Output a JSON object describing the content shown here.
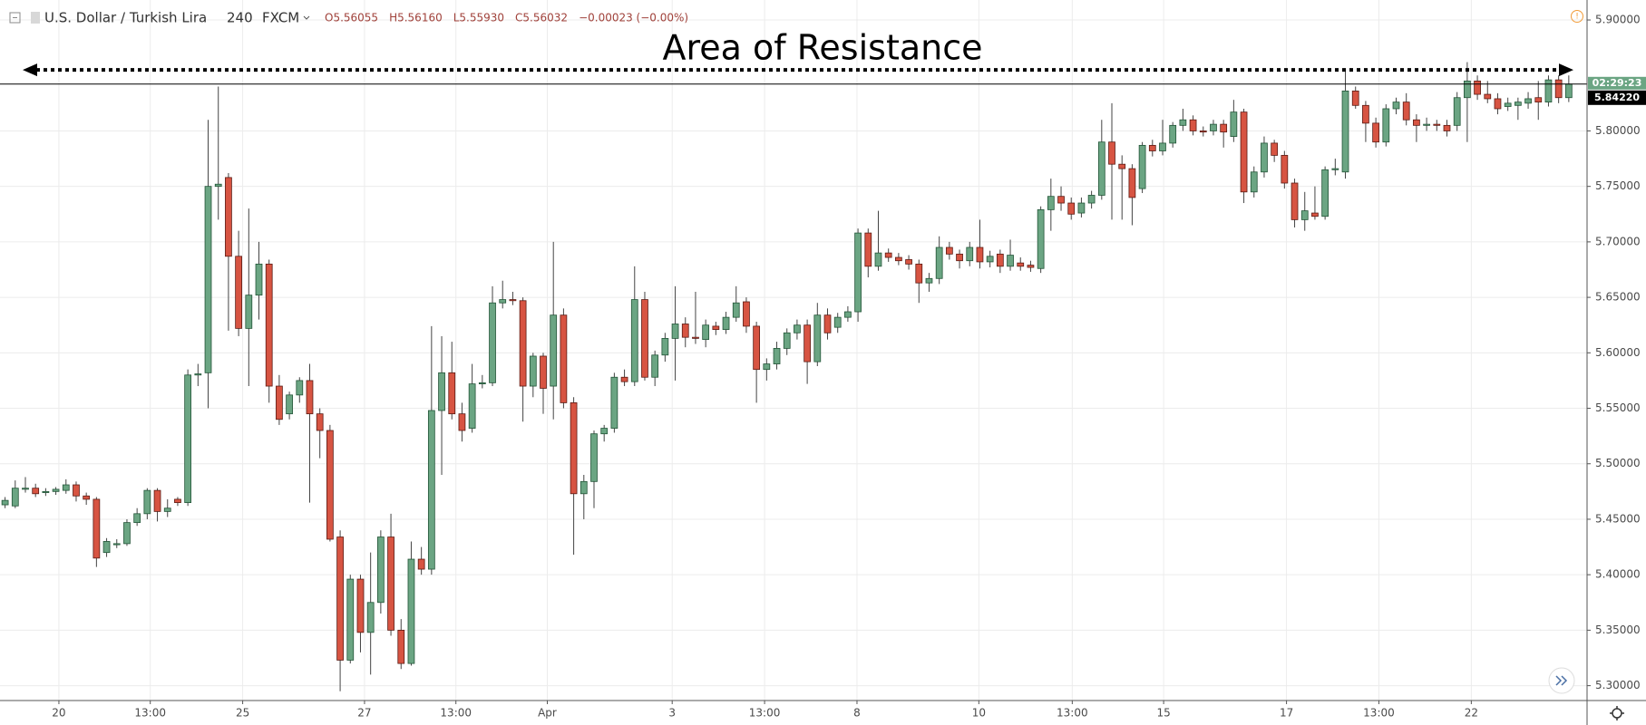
{
  "chart_data": {
    "type": "candlestick",
    "title": "U.S. Dollar / Turkish Lira",
    "interval": "240",
    "source": "FXCM",
    "legend_values": [
      "O5.56055",
      "H5.56160",
      "L5.55930",
      "C5.56032",
      "−0.00023 (−0.00%)"
    ],
    "annotations": [
      {
        "text": "Area of Resistance",
        "y": 5.855
      }
    ],
    "last_price": {
      "value": 5.8422,
      "label": "5.84220"
    },
    "countdown": "02:29:23",
    "up_color": "#6ba583",
    "down_color": "#d75442",
    "grid": true,
    "xlim": [
      -0.5,
      155.8
    ],
    "ylim": [
      5.2866,
      5.918
    ],
    "xticks": [
      {
        "value": 5.3,
        "label": "20"
      },
      {
        "value": 14.3,
        "label": "13:00"
      },
      {
        "value": 23.4,
        "label": "25"
      },
      {
        "value": 35.4,
        "label": "27"
      },
      {
        "value": 44.4,
        "label": "13:00"
      },
      {
        "value": 53.4,
        "label": "Apr"
      },
      {
        "value": 65.7,
        "label": "3"
      },
      {
        "value": 74.8,
        "label": "13:00"
      },
      {
        "value": 83.9,
        "label": "8"
      },
      {
        "value": 95.9,
        "label": "10"
      },
      {
        "value": 105.1,
        "label": "13:00"
      },
      {
        "value": 114.1,
        "label": "15"
      },
      {
        "value": 126.2,
        "label": "17"
      },
      {
        "value": 135.3,
        "label": "13:00"
      },
      {
        "value": 144.4,
        "label": "22"
      }
    ],
    "yticks": [
      {
        "value": 5.3,
        "label": "5.30000"
      },
      {
        "value": 5.35,
        "label": "5.35000"
      },
      {
        "value": 5.4,
        "label": "5.40000"
      },
      {
        "value": 5.45,
        "label": "5.45000"
      },
      {
        "value": 5.5,
        "label": "5.50000"
      },
      {
        "value": 5.55,
        "label": "5.55000"
      },
      {
        "value": 5.6,
        "label": "5.60000"
      },
      {
        "value": 5.65,
        "label": "5.65000"
      },
      {
        "value": 5.7,
        "label": "5.70000"
      },
      {
        "value": 5.75,
        "label": "5.75000"
      },
      {
        "value": 5.8,
        "label": "5.80000"
      },
      {
        "value": 5.9,
        "label": "5.90000"
      }
    ],
    "candles": [
      [
        5.463,
        5.47,
        5.46,
        5.467
      ],
      [
        5.462,
        5.485,
        5.46,
        5.478
      ],
      [
        5.477,
        5.488,
        5.474,
        5.478
      ],
      [
        5.478,
        5.482,
        5.47,
        5.473
      ],
      [
        5.474,
        5.478,
        5.471,
        5.475
      ],
      [
        5.475,
        5.479,
        5.472,
        5.477
      ],
      [
        5.476,
        5.486,
        5.473,
        5.481
      ],
      [
        5.481,
        5.484,
        5.466,
        5.471
      ],
      [
        5.471,
        5.474,
        5.463,
        5.468
      ],
      [
        5.468,
        5.47,
        5.407,
        5.415
      ],
      [
        5.42,
        5.433,
        5.416,
        5.43
      ],
      [
        5.427,
        5.432,
        5.424,
        5.428
      ],
      [
        5.428,
        5.45,
        5.426,
        5.447
      ],
      [
        5.447,
        5.46,
        5.444,
        5.455
      ],
      [
        5.455,
        5.478,
        5.45,
        5.476
      ],
      [
        5.476,
        5.478,
        5.448,
        5.457
      ],
      [
        5.457,
        5.468,
        5.452,
        5.46
      ],
      [
        5.468,
        5.47,
        5.462,
        5.465
      ],
      [
        5.465,
        5.585,
        5.462,
        5.58
      ],
      [
        5.58,
        5.59,
        5.57,
        5.581
      ],
      [
        5.582,
        5.81,
        5.55,
        5.75
      ],
      [
        5.75,
        5.84,
        5.72,
        5.752
      ],
      [
        5.758,
        5.762,
        5.62,
        5.687
      ],
      [
        5.687,
        5.71,
        5.615,
        5.622
      ],
      [
        5.622,
        5.73,
        5.57,
        5.652
      ],
      [
        5.652,
        5.7,
        5.63,
        5.68
      ],
      [
        5.68,
        5.684,
        5.555,
        5.57
      ],
      [
        5.57,
        5.58,
        5.535,
        5.54
      ],
      [
        5.545,
        5.565,
        5.54,
        5.562
      ],
      [
        5.562,
        5.578,
        5.555,
        5.575
      ],
      [
        5.575,
        5.59,
        5.465,
        5.545
      ],
      [
        5.545,
        5.55,
        5.505,
        5.53
      ],
      [
        5.53,
        5.535,
        5.43,
        5.432
      ],
      [
        5.434,
        5.44,
        5.295,
        5.323
      ],
      [
        5.323,
        5.4,
        5.32,
        5.396
      ],
      [
        5.396,
        5.4,
        5.33,
        5.348
      ],
      [
        5.348,
        5.42,
        5.31,
        5.375
      ],
      [
        5.375,
        5.44,
        5.365,
        5.434
      ],
      [
        5.434,
        5.455,
        5.345,
        5.35
      ],
      [
        5.35,
        5.36,
        5.315,
        5.32
      ],
      [
        5.32,
        5.43,
        5.318,
        5.414
      ],
      [
        5.414,
        5.425,
        5.4,
        5.405
      ],
      [
        5.405,
        5.624,
        5.4,
        5.548
      ],
      [
        5.548,
        5.615,
        5.49,
        5.582
      ],
      [
        5.582,
        5.61,
        5.54,
        5.545
      ],
      [
        5.545,
        5.555,
        5.52,
        5.53
      ],
      [
        5.532,
        5.59,
        5.528,
        5.572
      ],
      [
        5.572,
        5.58,
        5.568,
        5.573
      ],
      [
        5.573,
        5.66,
        5.57,
        5.645
      ],
      [
        5.645,
        5.665,
        5.64,
        5.648
      ],
      [
        5.648,
        5.655,
        5.643,
        5.647
      ],
      [
        5.647,
        5.65,
        5.538,
        5.57
      ],
      [
        5.57,
        5.6,
        5.56,
        5.597
      ],
      [
        5.597,
        5.6,
        5.545,
        5.568
      ],
      [
        5.57,
        5.7,
        5.54,
        5.634
      ],
      [
        5.634,
        5.64,
        5.55,
        5.555
      ],
      [
        5.555,
        5.56,
        5.418,
        5.473
      ],
      [
        5.473,
        5.49,
        5.45,
        5.484
      ],
      [
        5.484,
        5.53,
        5.46,
        5.527
      ],
      [
        5.527,
        5.535,
        5.52,
        5.532
      ],
      [
        5.532,
        5.582,
        5.528,
        5.578
      ],
      [
        5.578,
        5.585,
        5.57,
        5.574
      ],
      [
        5.574,
        5.678,
        5.57,
        5.648
      ],
      [
        5.648,
        5.655,
        5.575,
        5.578
      ],
      [
        5.578,
        5.602,
        5.57,
        5.598
      ],
      [
        5.598,
        5.618,
        5.592,
        5.613
      ],
      [
        5.613,
        5.66,
        5.575,
        5.626
      ],
      [
        5.626,
        5.632,
        5.605,
        5.614
      ],
      [
        5.614,
        5.655,
        5.608,
        5.613
      ],
      [
        5.612,
        5.63,
        5.605,
        5.625
      ],
      [
        5.624,
        5.628,
        5.616,
        5.621
      ],
      [
        5.621,
        5.637,
        5.617,
        5.632
      ],
      [
        5.632,
        5.66,
        5.628,
        5.645
      ],
      [
        5.646,
        5.65,
        5.618,
        5.624
      ],
      [
        5.624,
        5.628,
        5.555,
        5.585
      ],
      [
        5.585,
        5.595,
        5.575,
        5.59
      ],
      [
        5.59,
        5.61,
        5.585,
        5.604
      ],
      [
        5.604,
        5.622,
        5.598,
        5.618
      ],
      [
        5.618,
        5.63,
        5.612,
        5.625
      ],
      [
        5.625,
        5.63,
        5.572,
        5.592
      ],
      [
        5.592,
        5.645,
        5.588,
        5.634
      ],
      [
        5.634,
        5.64,
        5.612,
        5.618
      ],
      [
        5.623,
        5.636,
        5.618,
        5.632
      ],
      [
        5.632,
        5.642,
        5.628,
        5.637
      ],
      [
        5.637,
        5.712,
        5.628,
        5.708
      ],
      [
        5.708,
        5.712,
        5.668,
        5.678
      ],
      [
        5.678,
        5.728,
        5.674,
        5.69
      ],
      [
        5.69,
        5.694,
        5.682,
        5.686
      ],
      [
        5.686,
        5.69,
        5.679,
        5.683
      ],
      [
        5.684,
        5.688,
        5.675,
        5.68
      ],
      [
        5.68,
        5.684,
        5.645,
        5.663
      ],
      [
        5.663,
        5.672,
        5.655,
        5.667
      ],
      [
        5.667,
        5.705,
        5.662,
        5.695
      ],
      [
        5.695,
        5.7,
        5.684,
        5.689
      ],
      [
        5.689,
        5.693,
        5.676,
        5.683
      ],
      [
        5.683,
        5.7,
        5.678,
        5.695
      ],
      [
        5.695,
        5.72,
        5.676,
        5.682
      ],
      [
        5.682,
        5.692,
        5.677,
        5.687
      ],
      [
        5.689,
        5.693,
        5.672,
        5.678
      ],
      [
        5.678,
        5.702,
        5.674,
        5.688
      ],
      [
        5.681,
        5.686,
        5.674,
        5.678
      ],
      [
        5.679,
        5.683,
        5.673,
        5.677
      ],
      [
        5.676,
        5.732,
        5.672,
        5.729
      ],
      [
        5.729,
        5.757,
        5.71,
        5.741
      ],
      [
        5.741,
        5.75,
        5.728,
        5.735
      ],
      [
        5.735,
        5.74,
        5.72,
        5.725
      ],
      [
        5.726,
        5.74,
        5.722,
        5.735
      ],
      [
        5.735,
        5.746,
        5.73,
        5.742
      ],
      [
        5.742,
        5.81,
        5.738,
        5.79
      ],
      [
        5.79,
        5.825,
        5.72,
        5.77
      ],
      [
        5.77,
        5.778,
        5.72,
        5.766
      ],
      [
        5.766,
        5.77,
        5.715,
        5.74
      ],
      [
        5.748,
        5.79,
        5.744,
        5.787
      ],
      [
        5.787,
        5.792,
        5.777,
        5.782
      ],
      [
        5.782,
        5.81,
        5.778,
        5.789
      ],
      [
        5.789,
        5.808,
        5.785,
        5.805
      ],
      [
        5.805,
        5.82,
        5.8,
        5.81
      ],
      [
        5.81,
        5.814,
        5.796,
        5.8
      ],
      [
        5.8,
        5.804,
        5.795,
        5.799
      ],
      [
        5.8,
        5.81,
        5.796,
        5.806
      ],
      [
        5.806,
        5.81,
        5.785,
        5.799
      ],
      [
        5.795,
        5.828,
        5.79,
        5.817
      ],
      [
        5.817,
        5.82,
        5.735,
        5.745
      ],
      [
        5.745,
        5.768,
        5.74,
        5.763
      ],
      [
        5.763,
        5.795,
        5.758,
        5.789
      ],
      [
        5.789,
        5.792,
        5.772,
        5.778
      ],
      [
        5.778,
        5.782,
        5.748,
        5.753
      ],
      [
        5.753,
        5.757,
        5.713,
        5.72
      ],
      [
        5.72,
        5.745,
        5.71,
        5.728
      ],
      [
        5.726,
        5.75,
        5.72,
        5.723
      ],
      [
        5.723,
        5.768,
        5.72,
        5.765
      ],
      [
        5.765,
        5.775,
        5.76,
        5.766
      ],
      [
        5.763,
        5.855,
        5.757,
        5.836
      ],
      [
        5.836,
        5.84,
        5.82,
        5.823
      ],
      [
        5.823,
        5.827,
        5.79,
        5.807
      ],
      [
        5.807,
        5.812,
        5.785,
        5.79
      ],
      [
        5.79,
        5.824,
        5.786,
        5.82
      ],
      [
        5.82,
        5.83,
        5.815,
        5.826
      ],
      [
        5.826,
        5.834,
        5.805,
        5.81
      ],
      [
        5.81,
        5.815,
        5.79,
        5.805
      ],
      [
        5.805,
        5.812,
        5.8,
        5.806
      ],
      [
        5.806,
        5.81,
        5.8,
        5.805
      ],
      [
        5.805,
        5.81,
        5.795,
        5.8
      ],
      [
        5.805,
        5.835,
        5.8,
        5.83
      ],
      [
        5.83,
        5.862,
        5.79,
        5.845
      ],
      [
        5.845,
        5.85,
        5.828,
        5.833
      ],
      [
        5.833,
        5.845,
        5.825,
        5.829
      ],
      [
        5.829,
        5.834,
        5.815,
        5.82
      ],
      [
        5.822,
        5.83,
        5.818,
        5.825
      ],
      [
        5.823,
        5.83,
        5.81,
        5.826
      ],
      [
        5.825,
        5.835,
        5.82,
        5.829
      ],
      [
        5.83,
        5.845,
        5.81,
        5.826
      ],
      [
        5.826,
        5.85,
        5.822,
        5.846
      ],
      [
        5.846,
        5.85,
        5.825,
        5.83
      ],
      [
        5.83,
        5.85,
        5.826,
        5.8422
      ]
    ]
  }
}
